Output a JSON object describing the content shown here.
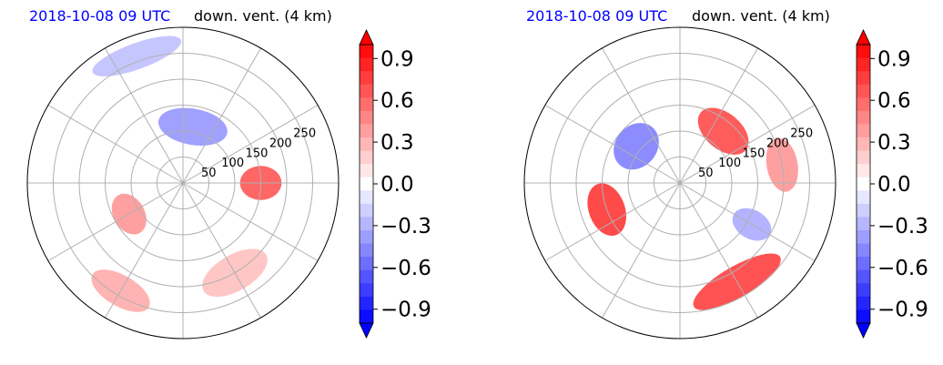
{
  "colors": {
    "negative": "#0000ff",
    "zero": "#ffffff",
    "positive": "#ff0000",
    "title_date": "#0000ff",
    "grid": "#b0b0b0"
  },
  "chart_data": [
    {
      "type": "heatmap",
      "projection": "polar",
      "title_left": "2018-10-08 09 UTC",
      "title_right": "down. vent. (4 km)",
      "radial_ticks": [
        "50",
        "100",
        "150",
        "200",
        "250"
      ],
      "radial_values": [
        50,
        100,
        150,
        200,
        250
      ],
      "rmax": 300,
      "angular_grid_deg": 30,
      "grid": true,
      "colorbar": {
        "min": -1.0,
        "max": 1.0,
        "levels": 21,
        "extend": "both",
        "ticks": [
          0.9,
          0.6,
          0.3,
          0.0,
          -0.3,
          -0.6,
          -0.9
        ],
        "tick_labels": [
          "0.9",
          "0.6",
          "0.3",
          "0.0",
          "−0.3",
          "−0.6",
          "−0.9"
        ]
      },
      "features": [
        {
          "r": 150,
          "theta": 0,
          "r_width": 80,
          "theta_width": 25,
          "value": 0.8
        },
        {
          "r": 120,
          "theta": 210,
          "r_width": 60,
          "theta_width": 40,
          "value": 0.5
        },
        {
          "r": 110,
          "theta": 80,
          "r_width": 70,
          "theta_width": 70,
          "value": -0.5
        },
        {
          "r": 240,
          "theta": 240,
          "r_width": 60,
          "theta_width": 30,
          "value": 0.4
        },
        {
          "r": 200,
          "theta": 300,
          "r_width": 70,
          "theta_width": 40,
          "value": 0.3
        },
        {
          "r": 260,
          "theta": 110,
          "r_width": 50,
          "theta_width": 40,
          "value": -0.3
        }
      ]
    },
    {
      "type": "heatmap",
      "projection": "polar",
      "title_left": "2018-10-08 09 UTC",
      "title_right": "down. vent. (4 km)",
      "radial_ticks": [
        "50",
        "100",
        "150",
        "200",
        "250"
      ],
      "radial_values": [
        50,
        100,
        150,
        200,
        250
      ],
      "rmax": 300,
      "angular_grid_deg": 30,
      "grid": true,
      "colorbar": {
        "min": -1.0,
        "max": 1.0,
        "levels": 21,
        "extend": "both",
        "ticks": [
          0.9,
          0.6,
          0.3,
          0.0,
          -0.3,
          -0.6,
          -0.9
        ],
        "tick_labels": [
          "0.9",
          "0.6",
          "0.3",
          "0.0",
          "−0.3",
          "−0.6",
          "−0.9"
        ]
      },
      "features": [
        {
          "r": 150,
          "theta": 200,
          "r_width": 70,
          "theta_width": 40,
          "value": 0.95
        },
        {
          "r": 220,
          "theta": 300,
          "r_width": 60,
          "theta_width": 50,
          "value": 0.9
        },
        {
          "r": 130,
          "theta": 50,
          "r_width": 70,
          "theta_width": 50,
          "value": 0.85
        },
        {
          "r": 110,
          "theta": 140,
          "r_width": 80,
          "theta_width": 50,
          "value": -0.6
        },
        {
          "r": 160,
          "theta": 330,
          "r_width": 80,
          "theta_width": 20,
          "value": -0.4
        },
        {
          "r": 200,
          "theta": 10,
          "r_width": 60,
          "theta_width": 30,
          "value": 0.5
        }
      ]
    }
  ]
}
